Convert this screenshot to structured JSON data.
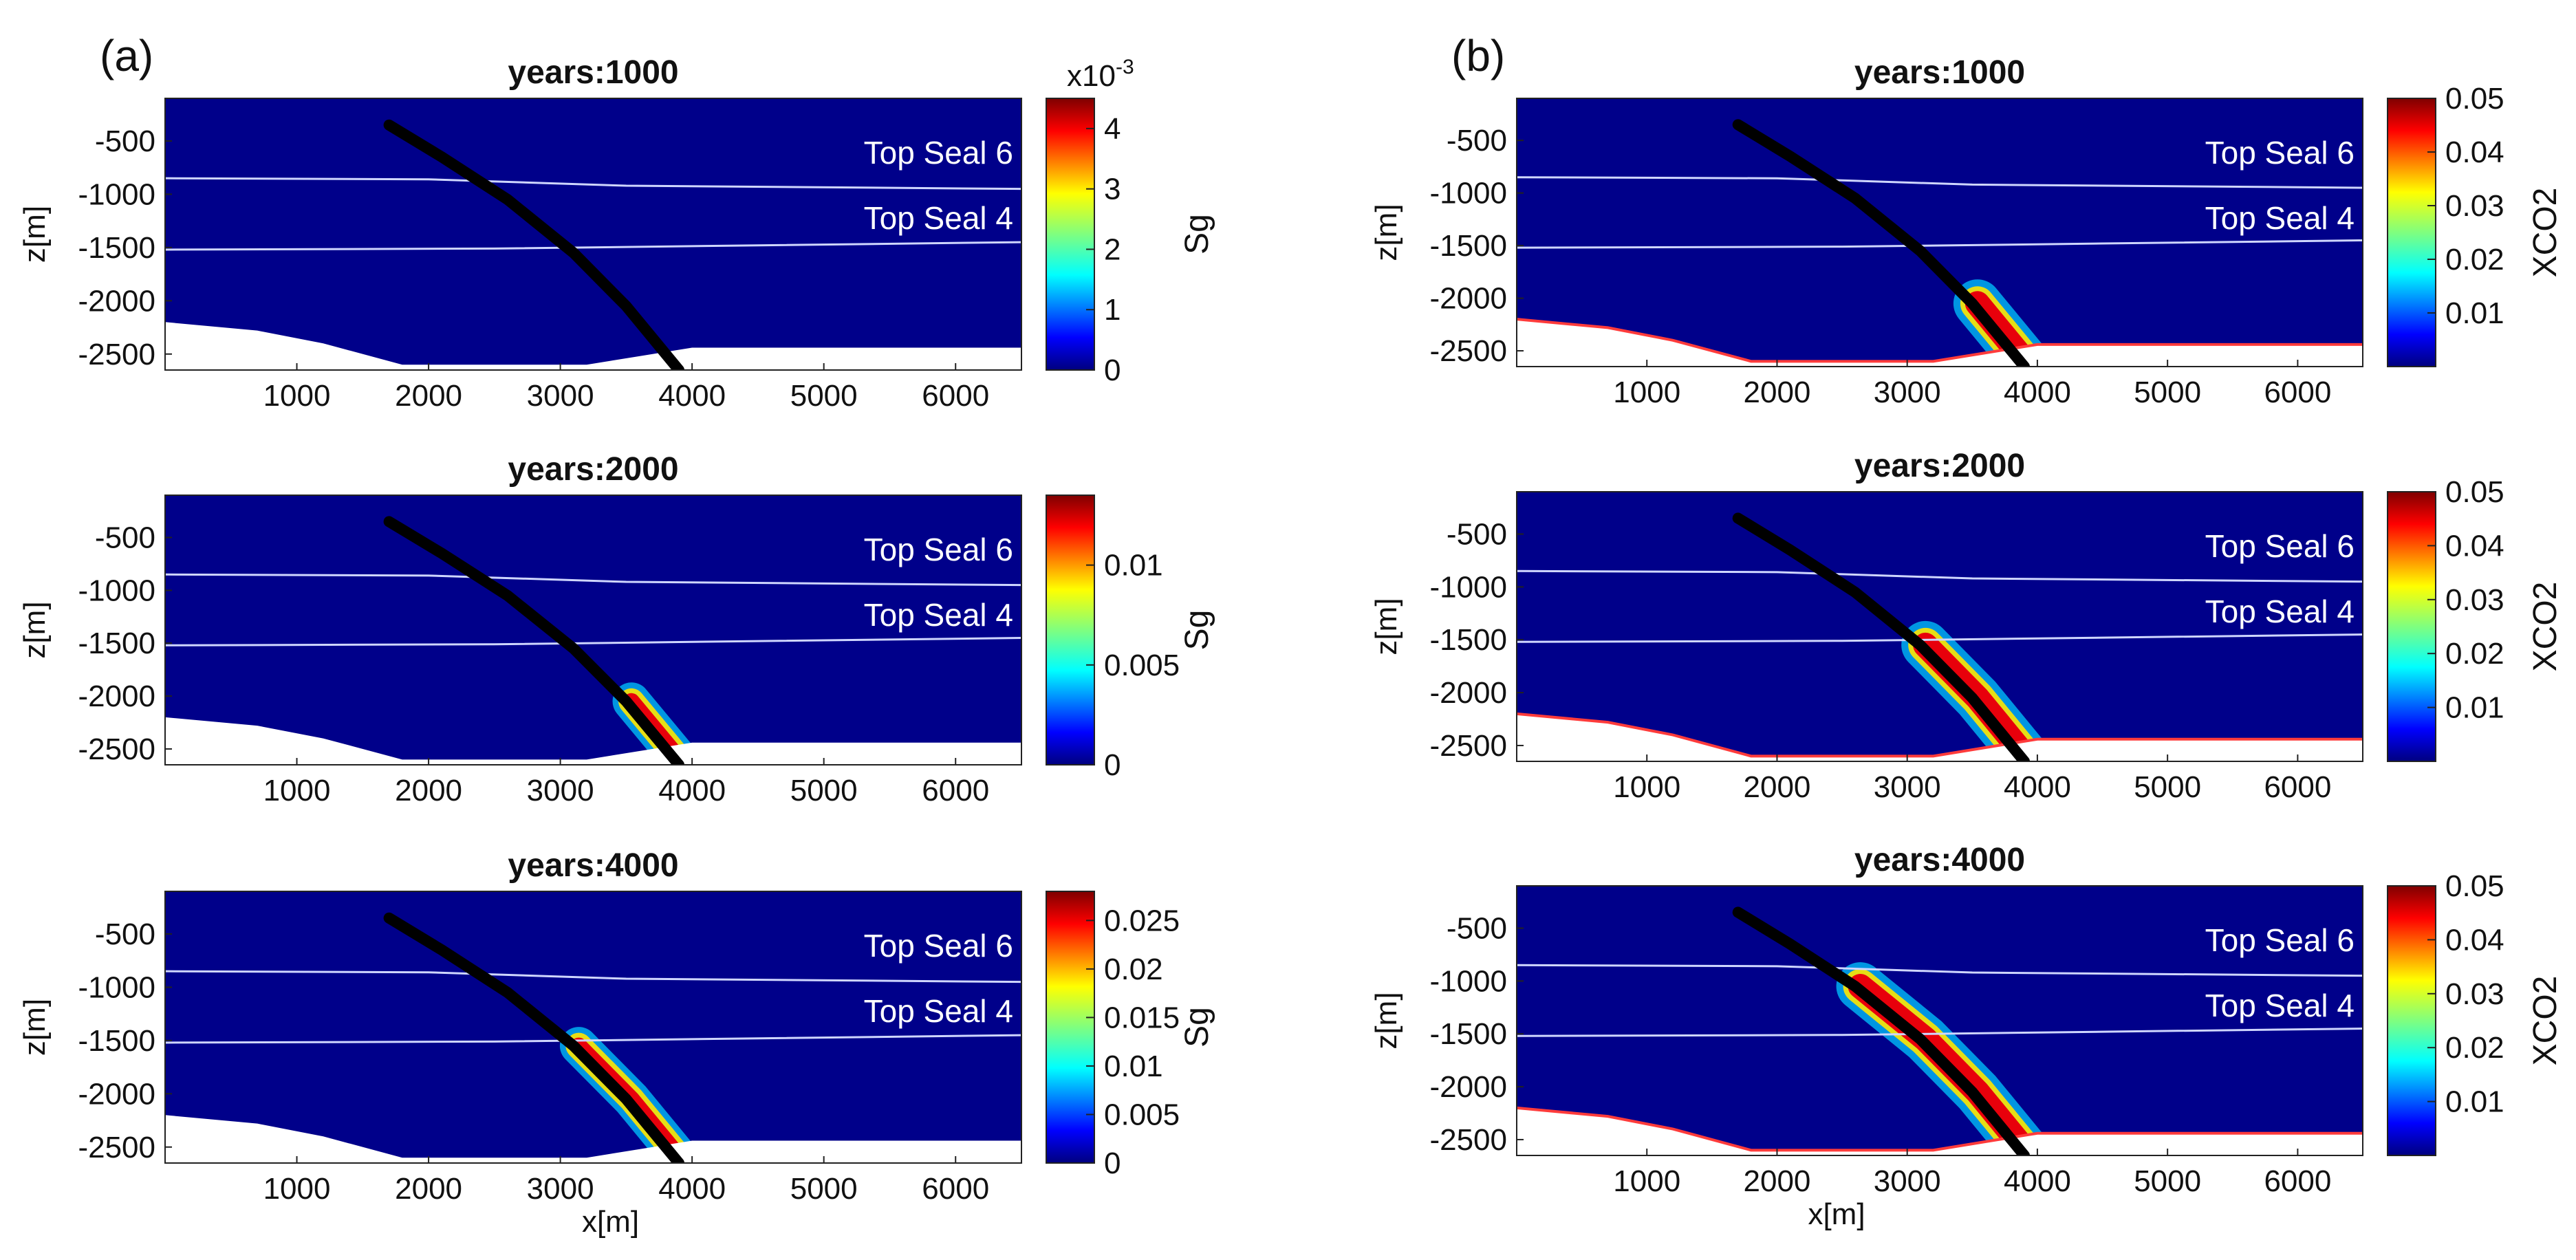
{
  "chart_data": [
    {
      "type": "heatmap",
      "panel": "(a)",
      "title": "years:1000",
      "xlabel": "",
      "ylabel": "z[m]",
      "xlim": [
        0,
        6500
      ],
      "ylim": [
        -2650,
        -100
      ],
      "xticks": [
        "1000",
        "2000",
        "3000",
        "4000",
        "5000",
        "6000"
      ],
      "yticks": [
        "-500",
        "-1000",
        "-1500",
        "-2000",
        "-2500"
      ],
      "colorbar": {
        "label": "Sg",
        "multiplier": "x10",
        "multiplier_exp": "-3",
        "max": 4.5,
        "ticks": [
          "0",
          "1",
          "2",
          "3",
          "4"
        ]
      },
      "seal_labels": [
        "Top Seal 6",
        "Top Seal 4"
      ],
      "plume": {
        "from_depth": 2350,
        "intensity": 0.8
      }
    },
    {
      "type": "heatmap",
      "panel": "",
      "title": "years:2000",
      "xlabel": "",
      "ylabel": "z[m]",
      "xlim": [
        0,
        6500
      ],
      "ylim": [
        -2650,
        -100
      ],
      "xticks": [
        "1000",
        "2000",
        "3000",
        "4000",
        "5000",
        "6000"
      ],
      "yticks": [
        "-500",
        "-1000",
        "-1500",
        "-2000",
        "-2500"
      ],
      "colorbar": {
        "label": "Sg",
        "multiplier": "",
        "multiplier_exp": "",
        "max": 0.0135,
        "ticks": [
          "0",
          "0.005",
          "0.01"
        ]
      },
      "seal_labels": [
        "Top Seal 6",
        "Top Seal 4"
      ],
      "plume": {
        "from_depth": 2050,
        "intensity": 1.0
      }
    },
    {
      "type": "heatmap",
      "panel": "",
      "title": "years:4000",
      "xlabel": "x[m]",
      "ylabel": "z[m]",
      "xlim": [
        0,
        6500
      ],
      "ylim": [
        -2650,
        -100
      ],
      "xticks": [
        "1000",
        "2000",
        "3000",
        "4000",
        "5000",
        "6000"
      ],
      "yticks": [
        "-500",
        "-1000",
        "-1500",
        "-2000",
        "-2500"
      ],
      "colorbar": {
        "label": "Sg",
        "multiplier": "",
        "multiplier_exp": "",
        "max": 0.028,
        "ticks": [
          "0",
          "0.005",
          "0.01",
          "0.015",
          "0.02",
          "0.025"
        ]
      },
      "seal_labels": [
        "Top Seal 6",
        "Top Seal 4"
      ],
      "plume": {
        "from_depth": 1600,
        "intensity": 1.0
      }
    },
    {
      "type": "heatmap",
      "panel": "(b)",
      "title": "years:1000",
      "xlabel": "",
      "ylabel": "z[m]",
      "xlim": [
        0,
        6500
      ],
      "ylim": [
        -2650,
        -100
      ],
      "xticks": [
        "1000",
        "2000",
        "3000",
        "4000",
        "5000",
        "6000"
      ],
      "yticks": [
        "-500",
        "-1000",
        "-1500",
        "-2000",
        "-2500"
      ],
      "colorbar": {
        "label": "XCO2",
        "multiplier": "",
        "multiplier_exp": "",
        "max": 0.05,
        "ticks": [
          "0.01",
          "0.02",
          "0.03",
          "0.04",
          "0.05"
        ]
      },
      "seal_labels": [
        "Top Seal 6",
        "Top Seal 4"
      ],
      "plume": {
        "from_depth": 1900,
        "intensity": 1.0
      }
    },
    {
      "type": "heatmap",
      "panel": "",
      "title": "years:2000",
      "xlabel": "",
      "ylabel": "z[m]",
      "xlim": [
        0,
        6500
      ],
      "ylim": [
        -2650,
        -100
      ],
      "xticks": [
        "1000",
        "2000",
        "3000",
        "4000",
        "5000",
        "6000"
      ],
      "yticks": [
        "-500",
        "-1000",
        "-1500",
        "-2000",
        "-2500"
      ],
      "colorbar": {
        "label": "XCO2",
        "multiplier": "",
        "multiplier_exp": "",
        "max": 0.05,
        "ticks": [
          "0.01",
          "0.02",
          "0.03",
          "0.04",
          "0.05"
        ]
      },
      "seal_labels": [
        "Top Seal 6",
        "Top Seal 4"
      ],
      "plume": {
        "from_depth": 1450,
        "intensity": 1.0
      }
    },
    {
      "type": "heatmap",
      "panel": "",
      "title": "years:4000",
      "xlabel": "x[m]",
      "ylabel": "z[m]",
      "xlim": [
        0,
        6500
      ],
      "ylim": [
        -2650,
        -100
      ],
      "xticks": [
        "1000",
        "2000",
        "3000",
        "4000",
        "5000",
        "6000"
      ],
      "yticks": [
        "-500",
        "-1000",
        "-1500",
        "-2000",
        "-2500"
      ],
      "colorbar": {
        "label": "XCO2",
        "multiplier": "",
        "multiplier_exp": "",
        "max": 0.05,
        "ticks": [
          "0.01",
          "0.02",
          "0.03",
          "0.04",
          "0.05"
        ]
      },
      "seal_labels": [
        "Top Seal 6",
        "Top Seal 4"
      ],
      "plume": {
        "from_depth": 750,
        "intensity": 1.0
      }
    }
  ],
  "geology": {
    "top_seal_6_depth": [
      [
        0,
        850
      ],
      [
        2000,
        860
      ],
      [
        3500,
        920
      ],
      [
        6500,
        950
      ]
    ],
    "top_seal_4_depth": [
      [
        0,
        1520
      ],
      [
        2500,
        1510
      ],
      [
        4500,
        1480
      ],
      [
        6500,
        1450
      ]
    ],
    "base_depth": [
      [
        0,
        2200
      ],
      [
        700,
        2280
      ],
      [
        1200,
        2400
      ],
      [
        1800,
        2600
      ],
      [
        3200,
        2600
      ],
      [
        3600,
        2520
      ],
      [
        4000,
        2440
      ],
      [
        6500,
        2440
      ]
    ],
    "well_trajectory": [
      [
        1700,
        350
      ],
      [
        2100,
        650
      ],
      [
        2600,
        1050
      ],
      [
        3100,
        1550
      ],
      [
        3500,
        2050
      ],
      [
        3900,
        2650
      ]
    ]
  },
  "colors": {
    "background": "#00008a",
    "seal_line": "#cfd6ff",
    "well": "#000000",
    "rock": "#ffffff"
  }
}
